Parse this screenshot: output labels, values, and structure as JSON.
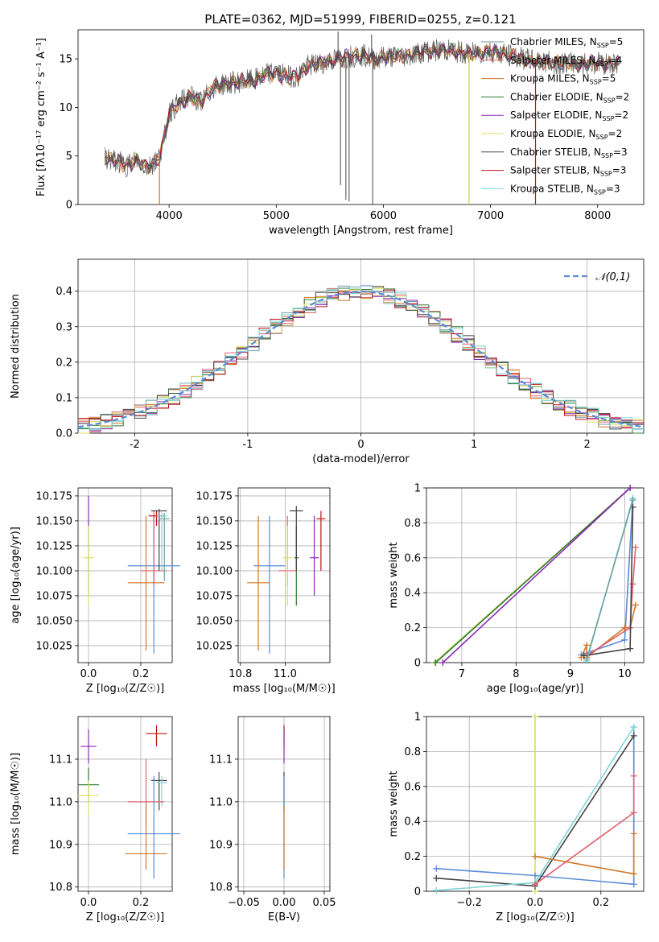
{
  "figure_title": "PLATE=0362, MJD=51999, FIBERID=0255, z=0.121",
  "colors": {
    "chab_miles": "#6f9fa0",
    "salp_miles": "#e06070",
    "krou_miles": "#d2772a",
    "chab_elodie": "#2f7a2f",
    "salp_elodie": "#8a2cb0",
    "krou_elodie": "#d8e060",
    "chab_stelib": "#444444",
    "salp_stelib": "#c01020",
    "krou_stelib": "#7fd4d8",
    "gauss": "#5b8bd6"
  },
  "chart_data": [
    {
      "id": "spectrum",
      "type": "line",
      "title": "",
      "xlabel": "wavelength [Angstrom, rest frame]",
      "ylabel": "Flux [f$_\\lambda$10$^{-17}$ erg cm$^{-2}$ s$^{-1}$ A$^{-1}$]",
      "ylabel_display": "Flux [fλ10⁻¹⁷ erg cm⁻² s⁻¹ A⁻¹]",
      "xlim": [
        3150,
        8430
      ],
      "ylim": [
        0,
        18
      ],
      "xticks": [
        4000,
        5000,
        6000,
        7000,
        8000
      ],
      "yticks": [
        0,
        5,
        10,
        15
      ],
      "grid": false,
      "legend_position": "right",
      "legend": [
        {
          "label": "Chabrier MILES, N",
          "sub": "SSP",
          "suffix": "=5",
          "color_key": "chab_miles"
        },
        {
          "label": "Salpeter MILES, N",
          "sub": "SSP",
          "suffix": "=4",
          "color_key": "salp_miles"
        },
        {
          "label": "Kroupa MILES, N",
          "sub": "SSP",
          "suffix": "=5",
          "color_key": "krou_miles"
        },
        {
          "label": "Chabrier ELODIE, N",
          "sub": "SSP",
          "suffix": "=2",
          "color_key": "chab_elodie"
        },
        {
          "label": "Salpeter ELODIE, N",
          "sub": "SSP",
          "suffix": "=2",
          "color_key": "salp_elodie"
        },
        {
          "label": "Kroupa ELODIE, N",
          "sub": "SSP",
          "suffix": "=2",
          "color_key": "krou_elodie"
        },
        {
          "label": "Chabrier STELIB, N",
          "sub": "SSP",
          "suffix": "=3",
          "color_key": "chab_stelib"
        },
        {
          "label": "Salpeter STELIB, N",
          "sub": "SSP",
          "suffix": "=3",
          "color_key": "salp_stelib"
        },
        {
          "label": "Kroupa STELIB, N",
          "sub": "SSP",
          "suffix": "=3",
          "color_key": "krou_stelib"
        }
      ],
      "continuum": [
        [
          3400,
          4.8
        ],
        [
          3500,
          4.5
        ],
        [
          3600,
          4.0
        ],
        [
          3700,
          4.6
        ],
        [
          3800,
          3.8
        ],
        [
          3900,
          4.8
        ],
        [
          3950,
          6.5
        ],
        [
          4000,
          9.5
        ],
        [
          4100,
          10.5
        ],
        [
          4200,
          11.2
        ],
        [
          4300,
          10.5
        ],
        [
          4400,
          12.0
        ],
        [
          4500,
          12.4
        ],
        [
          4700,
          12.7
        ],
        [
          4800,
          12.8
        ],
        [
          4900,
          13.4
        ],
        [
          5000,
          13.6
        ],
        [
          5100,
          13.2
        ],
        [
          5200,
          13.2
        ],
        [
          5300,
          14.3
        ],
        [
          5400,
          14.5
        ],
        [
          5500,
          14.8
        ],
        [
          5700,
          15.3
        ],
        [
          5800,
          15.4
        ],
        [
          5900,
          15.0
        ],
        [
          6000,
          15.2
        ],
        [
          6200,
          15.3
        ],
        [
          6400,
          15.8
        ],
        [
          6600,
          15.9
        ],
        [
          6800,
          15.5
        ],
        [
          7000,
          15.8
        ],
        [
          7200,
          15.3
        ],
        [
          7400,
          14.8
        ],
        [
          7600,
          14.6
        ],
        [
          7800,
          14.5
        ],
        [
          8000,
          14.6
        ],
        [
          8200,
          14.5
        ]
      ],
      "data_spikes": [
        [
          5577,
          17.8
        ],
        [
          5600,
          2.0
        ],
        [
          5650,
          0.5
        ],
        [
          5680,
          0.3
        ],
        [
          5890,
          17.5
        ],
        [
          5900,
          0.0
        ]
      ],
      "model_line_dips": [
        {
          "x": 3910,
          "series": "krou_miles"
        },
        {
          "x": 6800,
          "series": "krou_miles"
        },
        {
          "x": 7420,
          "series": "salp_stelib"
        },
        {
          "x": 6800,
          "series": "krou_elodie"
        }
      ]
    },
    {
      "id": "residuals",
      "type": "step",
      "title": "",
      "xlabel": "(data-model)/error",
      "ylabel": "Normed distribution",
      "xlim": [
        -2.5,
        2.5
      ],
      "ylim": [
        0,
        0.49
      ],
      "xticks": [
        -2,
        -1,
        0,
        1,
        2
      ],
      "yticks": [
        0.0,
        0.1,
        0.2,
        0.3,
        0.4
      ],
      "grid": true,
      "legend_position": "upper right",
      "legend": [
        {
          "label": "𝒩(0,1)",
          "style": "dashed",
          "color_key": "gauss"
        }
      ],
      "bin_width": 0.1,
      "gaussian": {
        "mean": 0,
        "sigma": 1
      }
    },
    {
      "id": "age_vs_Z",
      "type": "errorbar",
      "xlabel": "Z [log₁₀(Z/Z☉)]",
      "ylabel": "age  [log₁₀(age/yr)]",
      "xlim": [
        -0.04,
        0.32
      ],
      "ylim": [
        10.008,
        10.183
      ],
      "xticks": [
        0.0,
        0.2
      ],
      "xticklabels": [
        "0.0",
        "0.2"
      ],
      "yticks": [
        10.025,
        10.05,
        10.075,
        10.1,
        10.125,
        10.15,
        10.175
      ],
      "yticklabels": [
        "10.025",
        "10.050",
        "10.075",
        "10.100",
        "10.125",
        "10.150",
        "10.175"
      ],
      "grid": true,
      "points": [
        {
          "c": "salp_elodie",
          "x": 0.0,
          "xe": 0.0,
          "y": 10.113,
          "ye1": 10.075,
          "ye2": 10.175
        },
        {
          "c": "krou_elodie",
          "x": 0.0,
          "xe": 0.02,
          "y": 10.113,
          "ye1": 10.065,
          "ye2": 10.145
        },
        {
          "c": "gauss",
          "x": 0.25,
          "xe": 0.1,
          "y": 10.105,
          "ye1": 10.017,
          "ye2": 10.155
        },
        {
          "c": "krou_miles",
          "x": 0.22,
          "xe": 0.07,
          "y": 10.088,
          "ye1": 10.02,
          "ye2": 10.155
        },
        {
          "c": "salp_miles",
          "x": 0.25,
          "xe": 0.05,
          "y": 10.1,
          "ye1": 10.085,
          "ye2": 10.16
        },
        {
          "c": "chab_stelib",
          "x": 0.27,
          "xe": 0.03,
          "y": 10.16,
          "ye1": 10.1,
          "ye2": 10.162
        },
        {
          "c": "salp_stelib",
          "x": 0.26,
          "xe": 0.03,
          "y": 10.155,
          "ye1": 10.145,
          "ye2": 10.16
        },
        {
          "c": "chab_miles",
          "x": 0.29,
          "xe": 0.02,
          "y": 10.152,
          "ye1": 10.09,
          "ye2": 10.158
        },
        {
          "c": "krou_stelib",
          "x": 0.28,
          "xe": 0.02,
          "y": 10.155,
          "ye1": 10.1,
          "ye2": 10.16
        }
      ]
    },
    {
      "id": "age_vs_mass",
      "type": "errorbar",
      "xlabel": "mass [log₁₀(M/M☉)]",
      "ylabel": "",
      "xlim": [
        10.79,
        11.2
      ],
      "ylim": [
        10.008,
        10.183
      ],
      "xticks": [
        10.8,
        11.0
      ],
      "xticklabels": [
        "10.8",
        "11.0"
      ],
      "yticks": [
        10.025,
        10.05,
        10.075,
        10.1,
        10.125,
        10.15,
        10.175
      ],
      "yticklabels": [
        "10.025",
        "10.050",
        "10.075",
        "10.100",
        "10.125",
        "10.150",
        "10.175"
      ],
      "grid": true,
      "points": [
        {
          "c": "gauss",
          "x": 10.93,
          "xe": 0.07,
          "y": 10.105,
          "ye1": 10.017,
          "ye2": 10.155
        },
        {
          "c": "krou_miles",
          "x": 10.88,
          "xe": 0.05,
          "y": 10.088,
          "ye1": 10.02,
          "ye2": 10.155
        },
        {
          "c": "salp_miles",
          "x": 11.01,
          "xe": 0.04,
          "y": 10.1,
          "ye1": 10.085,
          "ye2": 10.155
        },
        {
          "c": "krou_elodie",
          "x": 11.01,
          "xe": 0.02,
          "y": 10.113,
          "ye1": 10.065,
          "ye2": 10.145
        },
        {
          "c": "chab_elodie",
          "x": 11.05,
          "xe": 0.01,
          "y": 10.113,
          "ye1": 10.065,
          "ye2": 10.145
        },
        {
          "c": "chab_stelib",
          "x": 11.05,
          "xe": 0.03,
          "y": 10.16,
          "ye1": 10.1,
          "ye2": 10.165
        },
        {
          "c": "salp_elodie",
          "x": 11.13,
          "xe": 0.02,
          "y": 10.113,
          "ye1": 10.075,
          "ye2": 10.155
        },
        {
          "c": "salp_stelib",
          "x": 11.16,
          "xe": 0.02,
          "y": 10.152,
          "ye1": 10.1,
          "ye2": 10.16
        }
      ]
    },
    {
      "id": "massweight_vs_age",
      "type": "line",
      "xlabel": "age  [log₁₀(age/yr)]",
      "ylabel": "mass weight",
      "xlim": [
        6.35,
        10.35
      ],
      "ylim": [
        0,
        1
      ],
      "xticks": [
        7,
        8,
        9,
        10
      ],
      "yticks": [
        0.0,
        0.2,
        0.4,
        0.6,
        0.8,
        1.0
      ],
      "grid": true,
      "series": [
        {
          "c": "krou_elodie",
          "points": [
            [
              6.5,
              0.0
            ],
            [
              10.1,
              1.0
            ]
          ]
        },
        {
          "c": "chab_elodie",
          "points": [
            [
              6.52,
              0.0
            ],
            [
              10.1,
              1.0
            ]
          ]
        },
        {
          "c": "salp_elodie",
          "points": [
            [
              6.65,
              0.0
            ],
            [
              10.1,
              1.0
            ]
          ]
        },
        {
          "c": "gauss",
          "points": [
            [
              9.2,
              0.045
            ],
            [
              10.0,
              0.13
            ],
            [
              10.15,
              0.94
            ]
          ]
        },
        {
          "c": "krou_miles",
          "points": [
            [
              9.2,
              0.03
            ],
            [
              9.3,
              0.1
            ],
            [
              9.3,
              0.03
            ],
            [
              10.0,
              0.2
            ],
            [
              10.1,
              0.2
            ],
            [
              10.2,
              0.33
            ]
          ]
        },
        {
          "c": "salp_miles",
          "points": [
            [
              9.3,
              0.04
            ],
            [
              10.1,
              0.2
            ],
            [
              10.15,
              0.45
            ],
            [
              10.2,
              0.66
            ]
          ]
        },
        {
          "c": "chab_stelib",
          "points": [
            [
              9.25,
              0.04
            ],
            [
              10.1,
              0.08
            ],
            [
              10.15,
              0.89
            ]
          ]
        },
        {
          "c": "krou_stelib",
          "points": [
            [
              9.3,
              0.01
            ],
            [
              10.15,
              0.94
            ]
          ]
        },
        {
          "c": "chab_miles",
          "points": [
            [
              9.3,
              0.02
            ],
            [
              10.15,
              0.93
            ]
          ]
        }
      ]
    },
    {
      "id": "mass_vs_Z",
      "type": "errorbar",
      "xlabel": "Z [log₁₀(Z/Z☉)]",
      "ylabel": "mass [log₁₀(M/M☉)]",
      "xlim": [
        -0.04,
        0.32
      ],
      "ylim": [
        10.79,
        11.2
      ],
      "xticks": [
        0.0,
        0.2
      ],
      "xticklabels": [
        "0.0",
        "0.2"
      ],
      "yticks": [
        10.8,
        10.9,
        11.0,
        11.1
      ],
      "yticklabels": [
        "10.8",
        "10.9",
        "11.0",
        "11.1"
      ],
      "grid": true,
      "points": [
        {
          "c": "salp_elodie",
          "x": 0.0,
          "xe": 0.03,
          "y": 11.13,
          "ye1": 11.09,
          "ye2": 11.17
        },
        {
          "c": "chab_elodie",
          "x": 0.0,
          "xe": 0.04,
          "y": 11.04,
          "ye1": 11.0,
          "ye2": 11.08
        },
        {
          "c": "krou_elodie",
          "x": 0.0,
          "xe": 0.04,
          "y": 11.015,
          "ye1": 10.97,
          "ye2": 11.05
        },
        {
          "c": "salp_stelib",
          "x": 0.26,
          "xe": 0.04,
          "y": 11.16,
          "ye1": 11.13,
          "ye2": 11.18
        },
        {
          "c": "chab_stelib",
          "x": 0.27,
          "xe": 0.03,
          "y": 11.05,
          "ye1": 10.98,
          "ye2": 11.07
        },
        {
          "c": "krou_stelib",
          "x": 0.28,
          "xe": 0.02,
          "y": 11.045,
          "ye1": 10.99,
          "ye2": 11.06
        },
        {
          "c": "salp_miles",
          "x": 0.22,
          "xe": 0.07,
          "y": 11.0,
          "ye1": 10.94,
          "ye2": 11.1
        },
        {
          "c": "gauss",
          "x": 0.25,
          "xe": 0.1,
          "y": 10.925,
          "ye1": 10.82,
          "ye2": 11.06
        },
        {
          "c": "krou_miles",
          "x": 0.22,
          "xe": 0.08,
          "y": 10.878,
          "ye1": 10.84,
          "ye2": 10.99
        }
      ]
    },
    {
      "id": "mass_vs_EBV",
      "type": "errorbar",
      "xlabel": "E(B-V)",
      "ylabel": "",
      "xlim": [
        -0.057,
        0.057
      ],
      "ylim": [
        10.79,
        11.2
      ],
      "xticks": [
        -0.05,
        0.0,
        0.05
      ],
      "xticklabels": [
        "−0.05",
        "0.00",
        "0.05"
      ],
      "yticks": [
        10.8,
        10.9,
        11.0,
        11.1
      ],
      "yticklabels": [
        "10.8",
        "10.9",
        "11.0",
        "11.1"
      ],
      "grid": true,
      "points": [
        {
          "c": "salp_stelib",
          "x": 0,
          "xe": 0,
          "y": 11.16,
          "ye1": 11.13,
          "ye2": 11.18
        },
        {
          "c": "salp_elodie",
          "x": 0,
          "xe": 0,
          "y": 11.13,
          "ye1": 11.09,
          "ye2": 11.17
        },
        {
          "c": "chab_stelib",
          "x": 0,
          "xe": 0,
          "y": 11.05,
          "ye1": 10.98,
          "ye2": 11.07
        },
        {
          "c": "krou_stelib",
          "x": 0,
          "xe": 0,
          "y": 11.045,
          "ye1": 10.99,
          "ye2": 11.06
        },
        {
          "c": "krou_elodie",
          "x": 0,
          "xe": 0,
          "y": 11.015,
          "ye1": 10.97,
          "ye2": 11.05
        },
        {
          "c": "gauss",
          "x": 0,
          "xe": 0,
          "y": 10.925,
          "ye1": 10.82,
          "ye2": 11.06
        },
        {
          "c": "krou_miles",
          "x": 0,
          "xe": 0,
          "y": 10.878,
          "ye1": 10.84,
          "ye2": 10.99
        }
      ]
    },
    {
      "id": "massweight_vs_Z",
      "type": "line",
      "xlabel": "Z [log₁₀(Z/Z☉)]",
      "ylabel": "mass weight",
      "xlim": [
        -0.33,
        0.33
      ],
      "ylim": [
        0,
        1
      ],
      "xticks": [
        -0.2,
        0.0,
        0.2
      ],
      "xticklabels": [
        "−0.2",
        "0.0",
        "0.2"
      ],
      "yticks": [
        0.0,
        0.2,
        0.4,
        0.6,
        0.8,
        1.0
      ],
      "grid": true,
      "series": [
        {
          "c": "krou_elodie",
          "points": [
            [
              0.0,
              0.0
            ],
            [
              0.0,
              1.0
            ]
          ]
        },
        {
          "c": "gauss",
          "points": [
            [
              -0.3,
              0.13
            ],
            [
              0.0,
              0.09
            ],
            [
              0.3,
              0.04
            ],
            [
              0.3,
              0.94
            ]
          ]
        },
        {
          "c": "chab_stelib",
          "points": [
            [
              -0.3,
              0.075
            ],
            [
              0.0,
              0.03
            ],
            [
              0.3,
              0.89
            ]
          ]
        },
        {
          "c": "krou_stelib",
          "points": [
            [
              -0.3,
              0.005
            ],
            [
              0.0,
              0.05
            ],
            [
              0.3,
              0.94
            ]
          ]
        },
        {
          "c": "krou_miles",
          "points": [
            [
              0.0,
              0.2
            ],
            [
              0.3,
              0.1
            ],
            [
              0.3,
              0.33
            ]
          ]
        },
        {
          "c": "salp_miles",
          "points": [
            [
              0.0,
              0.04
            ],
            [
              0.3,
              0.45
            ],
            [
              0.3,
              0.66
            ]
          ]
        }
      ]
    }
  ]
}
